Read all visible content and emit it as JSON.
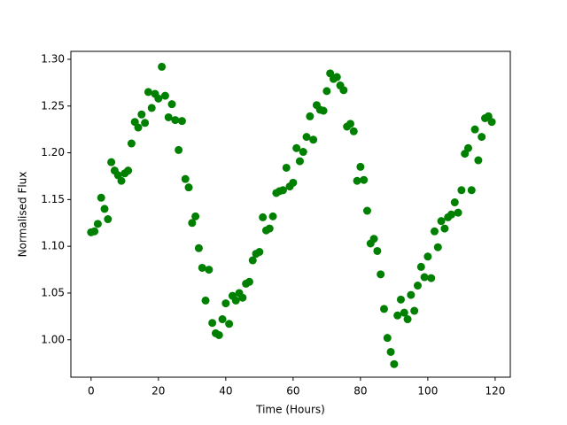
{
  "chart_data": {
    "type": "scatter",
    "xlabel": "Time (Hours)",
    "ylabel": "Normalised Flux",
    "x": [
      0,
      1,
      2,
      3,
      4,
      5,
      6,
      7,
      8,
      9,
      10,
      11,
      12,
      13,
      14,
      15,
      16,
      17,
      18,
      19,
      20,
      21,
      22,
      23,
      24,
      25,
      26,
      27,
      28,
      29,
      30,
      31,
      32,
      33,
      34,
      35,
      36,
      37,
      38,
      39,
      40,
      41,
      42,
      43,
      44,
      45,
      46,
      47,
      48,
      49,
      50,
      51,
      52,
      53,
      54,
      55,
      56,
      57,
      58,
      59,
      60,
      61,
      62,
      63,
      64,
      65,
      66,
      67,
      68,
      69,
      70,
      71,
      72,
      73,
      74,
      75,
      76,
      77,
      78,
      79,
      80,
      81,
      82,
      83,
      84,
      85,
      86,
      87,
      88,
      89,
      90,
      91,
      92,
      93,
      94,
      95,
      96,
      97,
      98,
      99,
      100,
      101,
      102,
      103,
      104,
      105,
      106,
      107,
      108,
      109,
      110,
      111,
      112,
      113,
      114,
      115,
      116,
      117,
      118,
      119
    ],
    "series": [
      {
        "color": "#008000",
        "values": [
          1.115,
          1.116,
          1.124,
          1.152,
          1.14,
          1.129,
          1.19,
          1.181,
          1.176,
          1.17,
          1.178,
          1.181,
          1.21,
          1.233,
          1.227,
          1.241,
          1.232,
          1.265,
          1.248,
          1.263,
          1.258,
          1.292,
          1.261,
          1.238,
          1.252,
          1.235,
          1.203,
          1.234,
          1.172,
          1.163,
          1.125,
          1.132,
          1.098,
          1.077,
          1.042,
          1.075,
          1.018,
          1.007,
          1.005,
          1.022,
          1.039,
          1.017,
          1.047,
          1.042,
          1.05,
          1.045,
          1.06,
          1.062,
          1.085,
          1.092,
          1.094,
          1.131,
          1.117,
          1.119,
          1.132,
          1.157,
          1.159,
          1.16,
          1.184,
          1.164,
          1.168,
          1.205,
          1.191,
          1.201,
          1.217,
          1.239,
          1.214,
          1.251,
          1.246,
          1.245,
          1.266,
          1.285,
          1.279,
          1.281,
          1.272,
          1.267,
          1.228,
          1.231,
          1.223,
          1.17,
          1.185,
          1.171,
          1.138,
          1.103,
          1.108,
          1.095,
          1.07,
          1.033,
          1.002,
          0.987,
          0.974,
          1.026,
          1.043,
          1.029,
          1.022,
          1.048,
          1.031,
          1.058,
          1.078,
          1.067,
          1.089,
          1.066,
          1.116,
          1.099,
          1.127,
          1.119,
          1.131,
          1.134,
          1.147,
          1.136,
          1.16,
          1.199,
          1.205,
          1.16,
          1.225,
          1.192,
          1.217,
          1.237,
          1.239,
          1.233
        ]
      }
    ],
    "xlim": [
      -6,
      124.5
    ],
    "ylim": [
      0.96,
      1.3085
    ],
    "xticks": [
      0,
      20,
      40,
      60,
      80,
      100,
      120
    ],
    "yticks": [
      {
        "value": 1.0,
        "label": "1.00"
      },
      1.05,
      {
        "value": 1.1,
        "label": "1.10"
      },
      1.15,
      {
        "value": 1.2,
        "label": "1.20"
      },
      1.25,
      {
        "value": 1.3,
        "label": "1.30"
      }
    ],
    "grid": false
  }
}
